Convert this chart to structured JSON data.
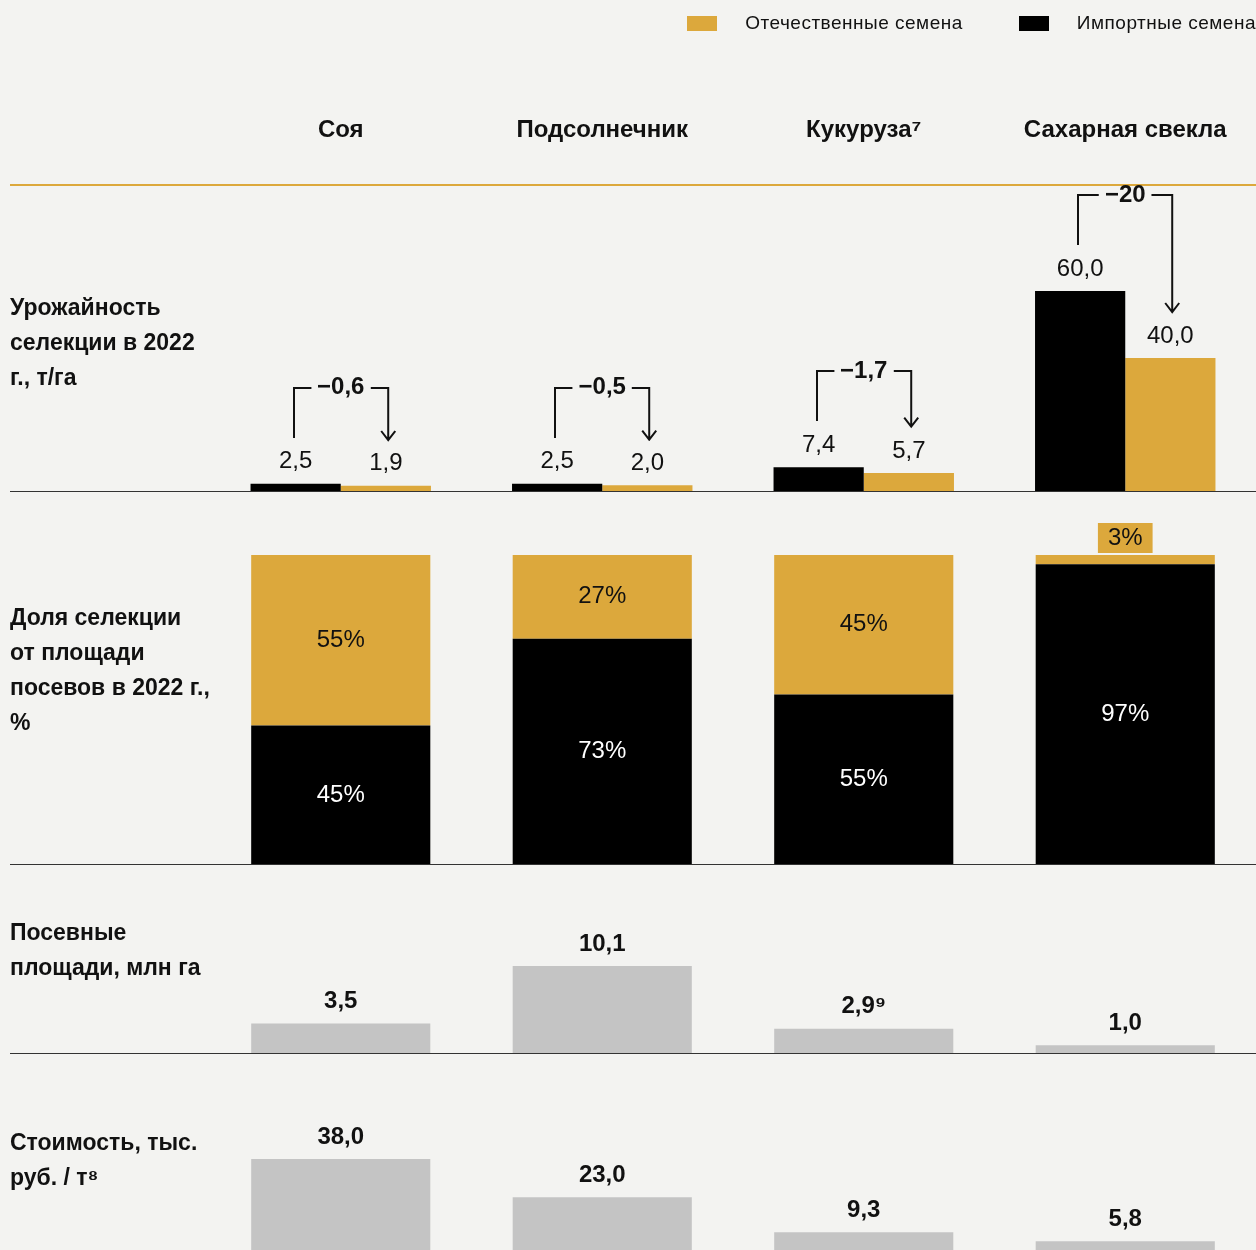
{
  "chart_data": [
    {
      "type": "bar",
      "ylabel": "Урожайность селекции в 2022 г., т/га",
      "categories": [
        "Соя",
        "Подсолнечник",
        "Кукуруза⁷",
        "Сахарная свекла"
      ],
      "tick_labels": "x",
      "legend": "top right",
      "ylim": [
        0,
        60
      ],
      "series": [
        {
          "name": "Импортные семена",
          "color": "#000000",
          "values": [
            2.5,
            2.5,
            7.4,
            60.0
          ],
          "value_labels": [
            "2,5",
            "2,5",
            "7,4",
            "60,0"
          ]
        },
        {
          "name": "Отечественные семена",
          "color": "#dca83c",
          "values": [
            1.9,
            2.0,
            5.7,
            40.0
          ],
          "value_labels": [
            "1,9",
            "2,0",
            "5,7",
            "40,0"
          ]
        }
      ],
      "annotations": [
        "−0,6",
        "−0,5",
        "−1,7",
        "−20"
      ]
    },
    {
      "type": "bar",
      "stacked": true,
      "ylabel": "Доля селекции от площади посевов в 2022 г., %",
      "categories": [
        null,
        null,
        null,
        null
      ],
      "tick_labels": false,
      "ylim": [
        0,
        100
      ],
      "series": [
        {
          "color": "#000000",
          "values": [
            45,
            73,
            55,
            97
          ],
          "value_labels": [
            "45%",
            "73%",
            "55%",
            "97%"
          ]
        },
        {
          "color": "#dca83c",
          "values": [
            55,
            27,
            45,
            3
          ],
          "value_labels": [
            "55%",
            "27%",
            "45%",
            "3%"
          ]
        }
      ]
    },
    {
      "type": "bar",
      "ylabel": "Посевные площади, млн га",
      "categories": [
        null,
        null,
        null,
        null
      ],
      "tick_labels": false,
      "ylim": [
        0,
        10.1
      ],
      "series": [
        {
          "color": "#c4c4c4",
          "values": [
            3.5,
            10.1,
            2.9,
            1.0
          ],
          "value_labels": [
            "3,5",
            "10,1",
            "2,9⁹",
            "1,0"
          ]
        }
      ]
    },
    {
      "type": "bar",
      "ylabel": "Стоимость, тыс. руб. / т⁸",
      "categories": [
        null,
        null,
        null,
        null
      ],
      "tick_labels": false,
      "ylim": [
        0,
        38
      ],
      "series": [
        {
          "color": "#c4c4c4",
          "values": [
            38.0,
            23.0,
            9.3,
            5.8
          ],
          "value_labels": [
            "38,0",
            "23,0",
            "9,3",
            "5,8"
          ]
        }
      ]
    }
  ]
}
